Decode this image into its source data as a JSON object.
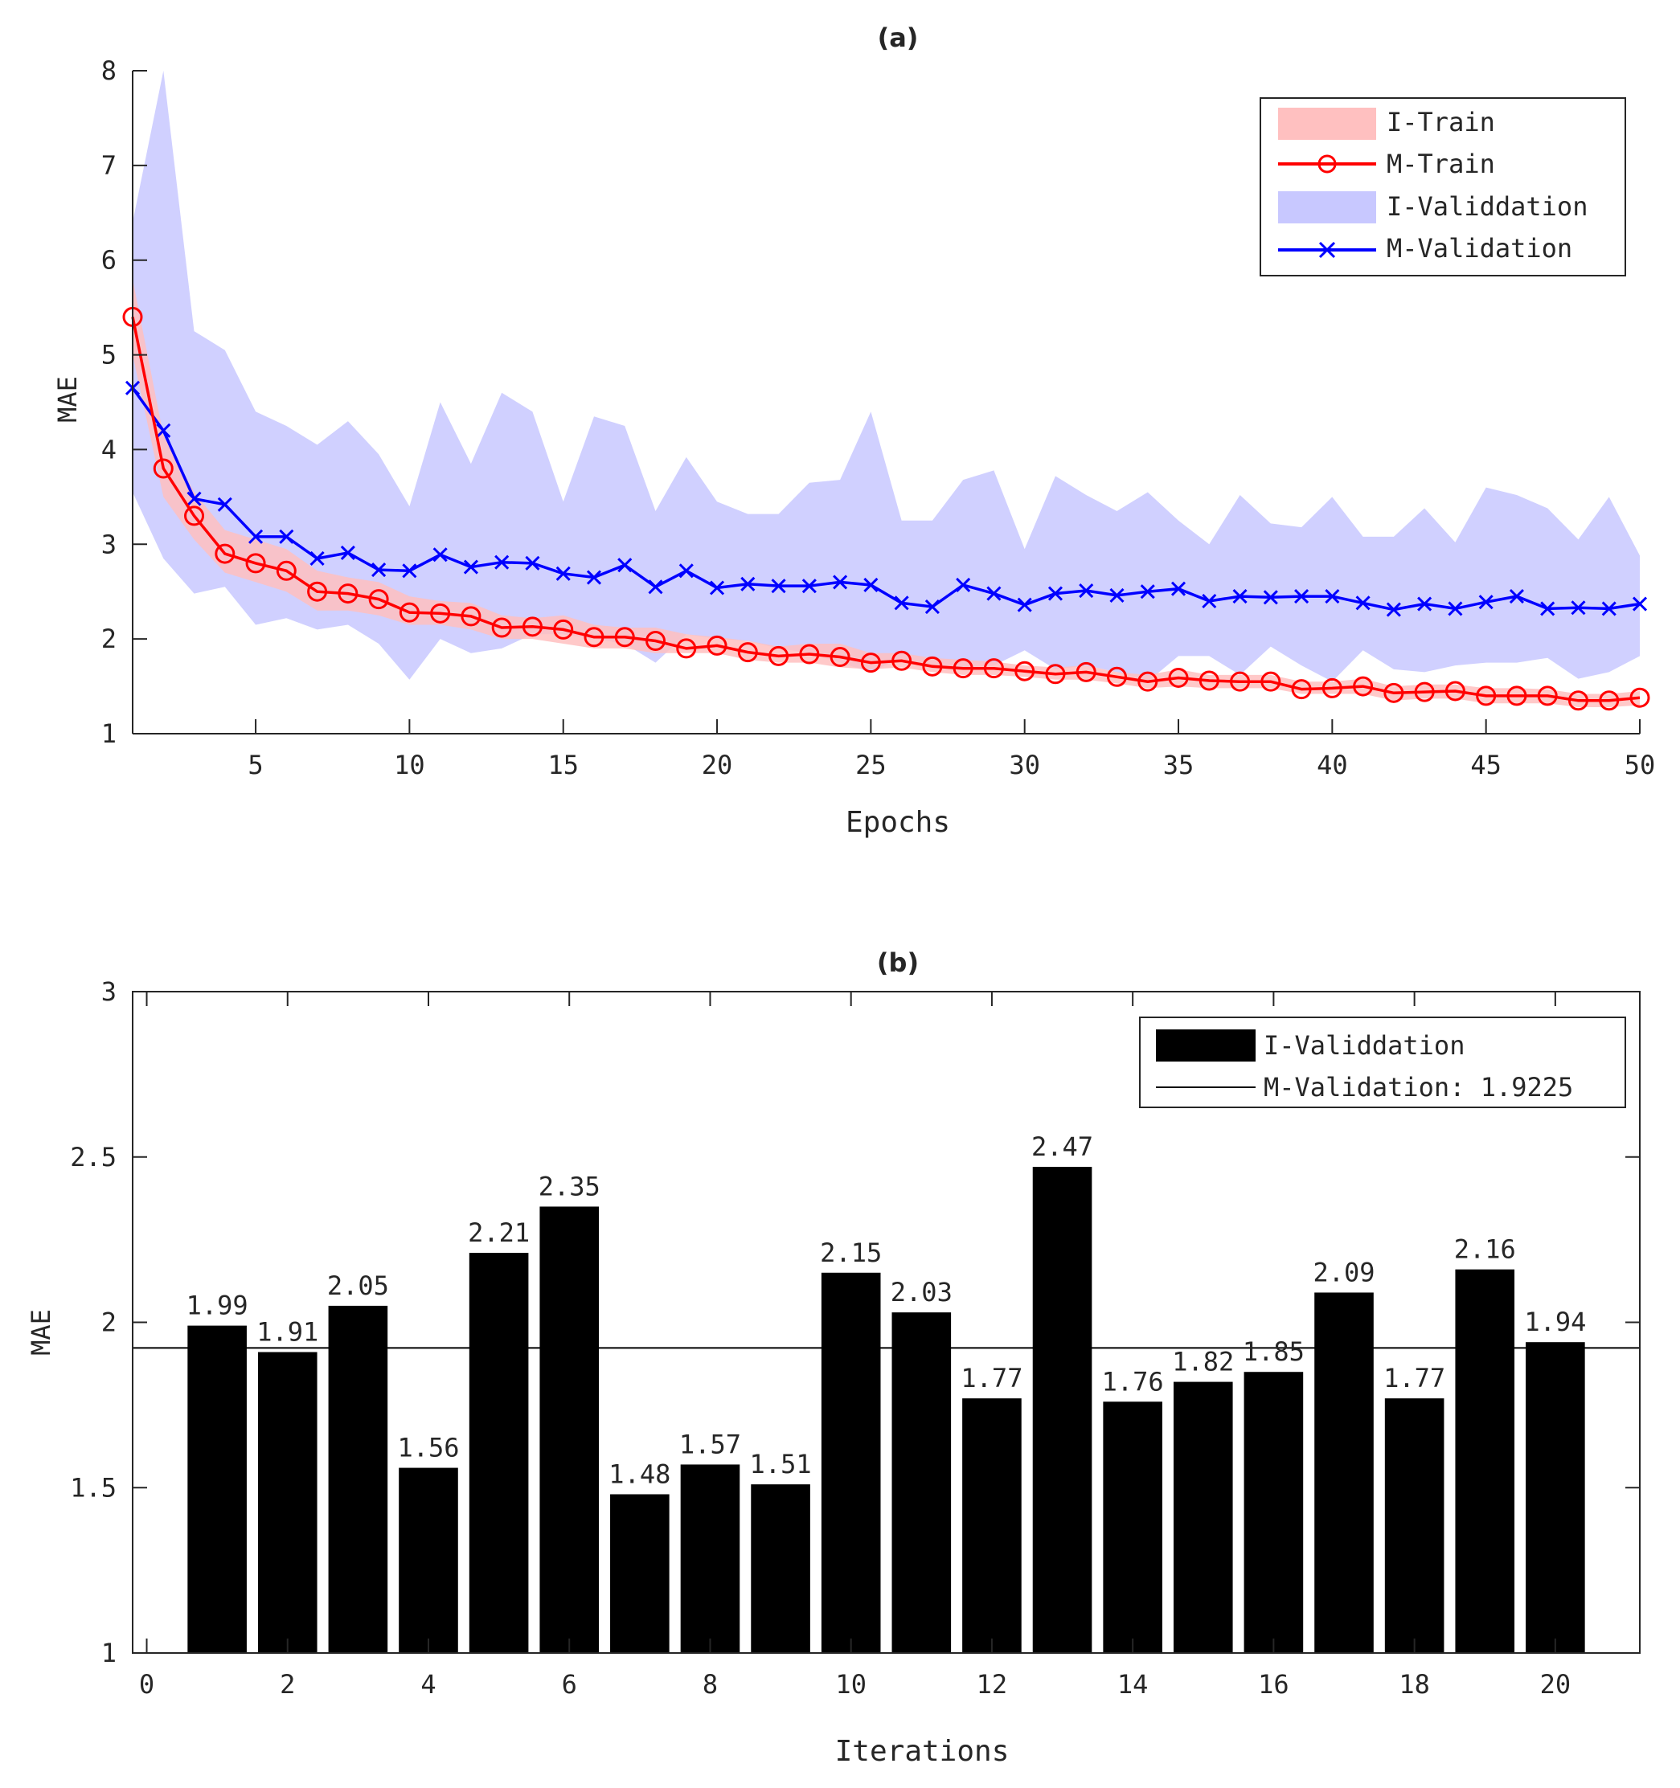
{
  "chart_data": [
    {
      "type": "line",
      "title": "(a)",
      "xlabel": "Epochs",
      "ylabel": "MAE",
      "xlim": [
        1,
        50
      ],
      "ylim": [
        1,
        8
      ],
      "xticks": [
        5,
        10,
        15,
        20,
        25,
        30,
        35,
        40,
        45,
        50
      ],
      "yticks": [
        1,
        2,
        3,
        4,
        5,
        6,
        7,
        8
      ],
      "legend_position": "top-right",
      "series": [
        {
          "name": "I-Train",
          "kind": "band",
          "color": "#ffc0c0",
          "x": [
            1,
            2,
            3,
            4,
            5,
            6,
            7,
            8,
            9,
            10,
            11,
            12,
            13,
            14,
            15,
            16,
            17,
            18,
            19,
            20,
            21,
            22,
            23,
            24,
            25,
            26,
            27,
            28,
            29,
            30,
            31,
            32,
            33,
            34,
            35,
            36,
            37,
            38,
            39,
            40,
            41,
            42,
            43,
            44,
            45,
            46,
            47,
            48,
            49,
            50
          ],
          "lower": [
            5.0,
            3.5,
            3.05,
            2.7,
            2.6,
            2.5,
            2.3,
            2.3,
            2.25,
            2.15,
            2.15,
            2.1,
            2.0,
            2.0,
            1.95,
            1.9,
            1.9,
            1.85,
            1.85,
            1.85,
            1.78,
            1.75,
            1.75,
            1.7,
            1.68,
            1.7,
            1.65,
            1.62,
            1.62,
            1.6,
            1.57,
            1.57,
            1.53,
            1.48,
            1.5,
            1.48,
            1.48,
            1.48,
            1.42,
            1.42,
            1.42,
            1.35,
            1.37,
            1.37,
            1.32,
            1.32,
            1.32,
            1.28,
            1.28,
            1.3
          ],
          "upper": [
            5.8,
            4.15,
            3.55,
            3.15,
            3.05,
            2.95,
            2.72,
            2.65,
            2.6,
            2.45,
            2.4,
            2.38,
            2.25,
            2.22,
            2.25,
            2.15,
            2.12,
            2.12,
            2.05,
            2.02,
            1.98,
            1.92,
            1.95,
            1.95,
            1.85,
            1.85,
            1.8,
            1.78,
            1.76,
            1.72,
            1.7,
            1.72,
            1.65,
            1.62,
            1.68,
            1.62,
            1.62,
            1.62,
            1.55,
            1.55,
            1.58,
            1.5,
            1.52,
            1.52,
            1.48,
            1.48,
            1.47,
            1.42,
            1.42,
            1.45
          ]
        },
        {
          "name": "M-Train",
          "kind": "line",
          "color": "#ff0000",
          "marker": "o",
          "x": [
            1,
            2,
            3,
            4,
            5,
            6,
            7,
            8,
            9,
            10,
            11,
            12,
            13,
            14,
            15,
            16,
            17,
            18,
            19,
            20,
            21,
            22,
            23,
            24,
            25,
            26,
            27,
            28,
            29,
            30,
            31,
            32,
            33,
            34,
            35,
            36,
            37,
            38,
            39,
            40,
            41,
            42,
            43,
            44,
            45,
            46,
            47,
            48,
            49,
            50
          ],
          "y": [
            5.4,
            3.8,
            3.3,
            2.9,
            2.8,
            2.72,
            2.5,
            2.48,
            2.42,
            2.28,
            2.27,
            2.24,
            2.12,
            2.13,
            2.1,
            2.02,
            2.02,
            1.98,
            1.9,
            1.93,
            1.86,
            1.82,
            1.84,
            1.81,
            1.75,
            1.77,
            1.71,
            1.69,
            1.69,
            1.66,
            1.63,
            1.65,
            1.6,
            1.55,
            1.59,
            1.56,
            1.55,
            1.55,
            1.47,
            1.48,
            1.5,
            1.43,
            1.44,
            1.45,
            1.4,
            1.4,
            1.4,
            1.35,
            1.35,
            1.38
          ]
        },
        {
          "name": "I-Validdation",
          "kind": "band",
          "color": "#c8c8ff",
          "x": [
            1,
            2,
            3,
            4,
            5,
            6,
            7,
            8,
            9,
            10,
            11,
            12,
            13,
            14,
            15,
            16,
            17,
            18,
            19,
            20,
            21,
            22,
            23,
            24,
            25,
            26,
            27,
            28,
            29,
            30,
            31,
            32,
            33,
            34,
            35,
            36,
            37,
            38,
            39,
            40,
            41,
            42,
            43,
            44,
            45,
            46,
            47,
            48,
            49,
            50
          ],
          "lower": [
            3.55,
            2.85,
            2.48,
            2.55,
            2.15,
            2.22,
            2.1,
            2.15,
            1.95,
            1.57,
            2.0,
            1.85,
            1.9,
            2.05,
            2.05,
            2.0,
            1.95,
            1.75,
            2.05,
            2.0,
            1.98,
            1.9,
            1.85,
            1.75,
            1.65,
            1.8,
            1.68,
            1.7,
            1.72,
            1.88,
            1.68,
            1.72,
            1.65,
            1.55,
            1.82,
            1.82,
            1.62,
            1.92,
            1.72,
            1.55,
            1.88,
            1.68,
            1.65,
            1.72,
            1.75,
            1.75,
            1.8,
            1.58,
            1.65,
            1.82
          ],
          "upper": [
            6.4,
            8.0,
            5.25,
            5.05,
            4.4,
            4.25,
            4.05,
            4.3,
            3.95,
            3.4,
            4.5,
            3.85,
            4.6,
            4.4,
            3.45,
            4.35,
            4.25,
            3.35,
            3.92,
            3.45,
            3.32,
            3.32,
            3.65,
            3.68,
            4.4,
            3.25,
            3.25,
            3.68,
            3.78,
            2.95,
            3.72,
            3.52,
            3.35,
            3.55,
            3.25,
            3.0,
            3.52,
            3.22,
            3.18,
            3.5,
            3.08,
            3.08,
            3.38,
            3.02,
            3.6,
            3.52,
            3.38,
            3.05,
            3.5,
            2.88
          ]
        },
        {
          "name": "M-Validation",
          "kind": "line",
          "color": "#0000ff",
          "marker": "x",
          "x": [
            1,
            2,
            3,
            4,
            5,
            6,
            7,
            8,
            9,
            10,
            11,
            12,
            13,
            14,
            15,
            16,
            17,
            18,
            19,
            20,
            21,
            22,
            23,
            24,
            25,
            26,
            27,
            28,
            29,
            30,
            31,
            32,
            33,
            34,
            35,
            36,
            37,
            38,
            39,
            40,
            41,
            42,
            43,
            44,
            45,
            46,
            47,
            48,
            49,
            50
          ],
          "y": [
            4.65,
            4.2,
            3.48,
            3.42,
            3.08,
            3.08,
            2.85,
            2.91,
            2.73,
            2.72,
            2.89,
            2.76,
            2.81,
            2.8,
            2.69,
            2.65,
            2.78,
            2.55,
            2.72,
            2.54,
            2.58,
            2.56,
            2.56,
            2.6,
            2.57,
            2.38,
            2.34,
            2.57,
            2.48,
            2.36,
            2.48,
            2.51,
            2.46,
            2.5,
            2.53,
            2.4,
            2.45,
            2.44,
            2.45,
            2.45,
            2.38,
            2.31,
            2.37,
            2.32,
            2.39,
            2.45,
            2.32,
            2.33,
            2.32,
            2.37
          ]
        }
      ]
    },
    {
      "type": "bar",
      "title": "(b)",
      "xlabel": "Iterations",
      "ylabel": "MAE",
      "xlim": [
        -0.2,
        21.2
      ],
      "ylim": [
        1,
        3
      ],
      "xticks": [
        0,
        2,
        4,
        6,
        8,
        10,
        12,
        14,
        16,
        18,
        20
      ],
      "yticks": [
        1,
        1.5,
        2,
        2.5,
        3
      ],
      "ytick_labels": [
        "1",
        "1.5",
        "2",
        "2.5",
        "3"
      ],
      "legend_position": "top-right",
      "categories": [
        1,
        2,
        3,
        4,
        5,
        6,
        7,
        8,
        9,
        10,
        11,
        12,
        13,
        14,
        15,
        16,
        17,
        18,
        19,
        20
      ],
      "series": [
        {
          "name": "I-Validdation",
          "kind": "bar",
          "color": "#000000",
          "values": [
            1.99,
            1.91,
            2.05,
            1.56,
            2.21,
            2.35,
            1.48,
            1.57,
            1.51,
            2.15,
            2.03,
            1.77,
            2.47,
            1.76,
            1.82,
            1.85,
            2.09,
            1.77,
            2.16,
            1.94
          ],
          "labels": [
            "1.99",
            "1.91",
            "2.05",
            "1.56",
            "2.21",
            "2.35",
            "1.48",
            "1.57",
            "1.51",
            "2.15",
            "2.03",
            "1.77",
            "2.47",
            "1.76",
            "1.82",
            "1.85",
            "2.09",
            "1.77",
            "2.16",
            "1.94"
          ]
        },
        {
          "name": "M-Validation: 1.9225",
          "kind": "hline",
          "color": "#000000",
          "value": 1.9225
        }
      ]
    }
  ]
}
